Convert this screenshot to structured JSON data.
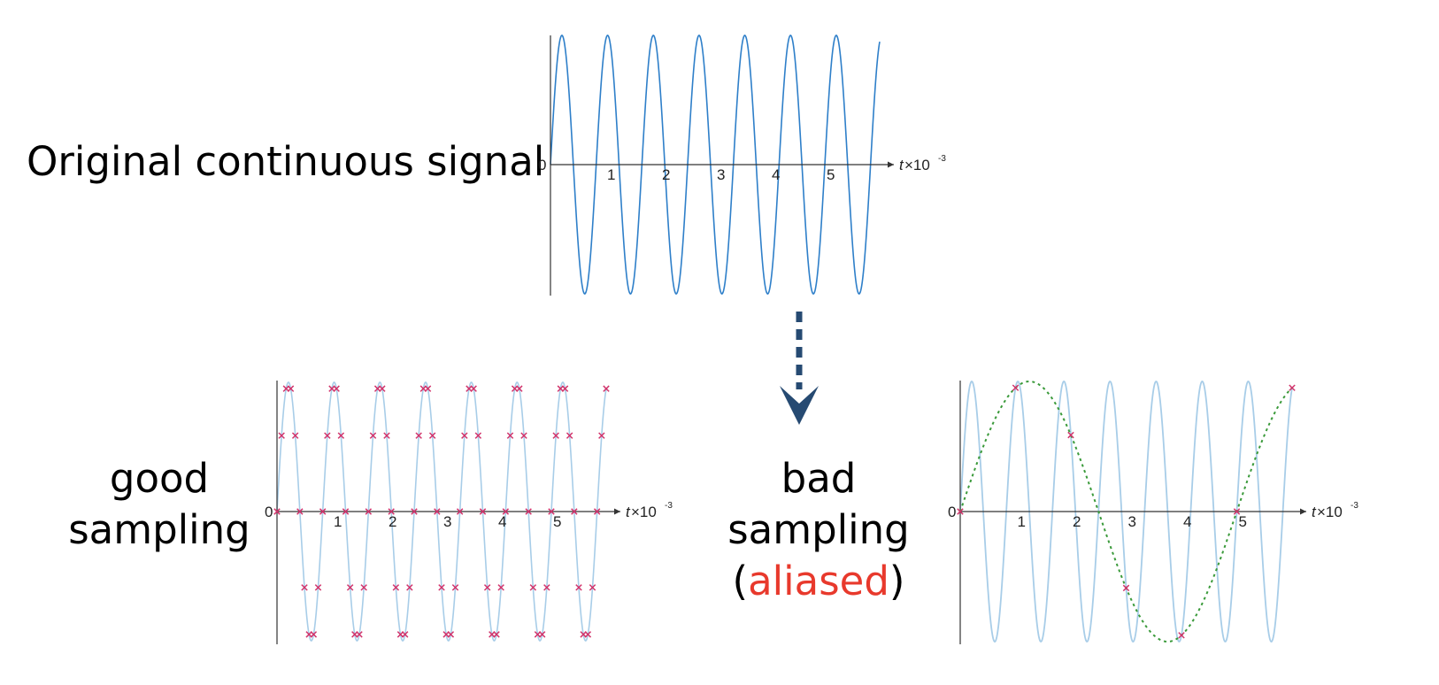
{
  "labels": {
    "original": "Original continuous signal",
    "good_line1": "good",
    "good_line2": "sampling",
    "bad_line1": "bad",
    "bad_line2": "sampling",
    "bad_open_paren": "(",
    "bad_aliased": "aliased",
    "bad_close_paren": ")"
  },
  "colors": {
    "signal_dark": "#2e7fc9",
    "signal_light": "#a8cde8",
    "sample_marker": "#d1336b",
    "alias_curve": "#3a9a3a",
    "arrow": "#264a72"
  },
  "axis": {
    "origin_label": "0",
    "tick_labels": [
      "1",
      "2",
      "3",
      "4",
      "5"
    ],
    "x_name": "t",
    "x_unit": "×10",
    "x_unit_exp": "-3"
  },
  "chart_data": [
    {
      "type": "line",
      "signal_frequency_hz": 1200,
      "x_range_ms": [
        0,
        6.0
      ],
      "tick_values_ms": [
        1,
        2,
        3,
        4,
        5
      ]
    },
    {
      "type": "scatter",
      "signal_frequency_hz": 1200,
      "sampling_rate_hz": 12000,
      "x_range_ms": [
        0,
        6.0
      ],
      "tick_values_ms": [
        1,
        2,
        3,
        4,
        5
      ]
    },
    {
      "type": "scatter",
      "signal_frequency_hz": 1200,
      "sampling_rate_hz": 1000,
      "alias_frequency_hz": 200,
      "x_range_ms": [
        0,
        6.0
      ],
      "tick_values_ms": [
        1,
        2,
        3,
        4,
        5
      ]
    }
  ]
}
